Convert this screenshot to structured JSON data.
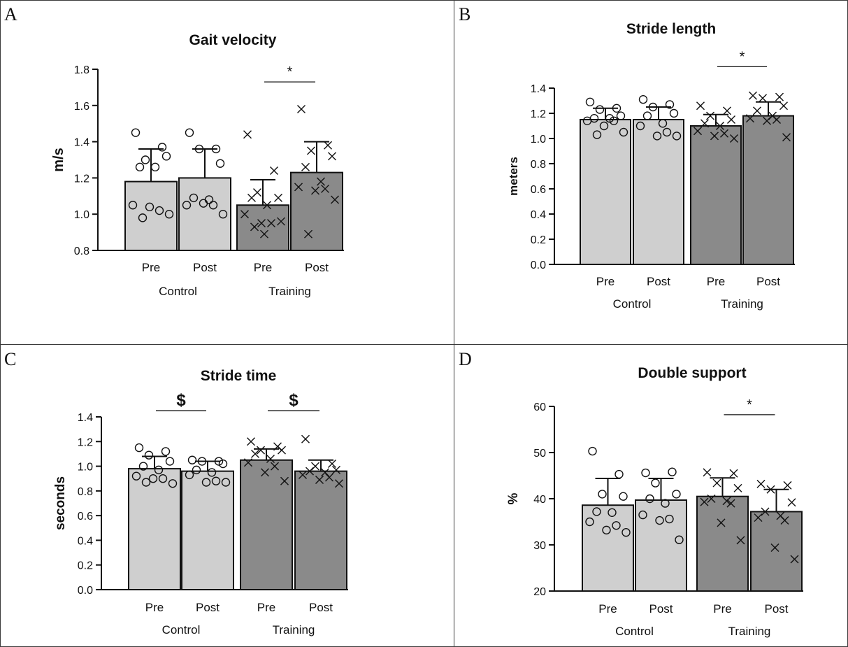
{
  "colors": {
    "control_bar": "#cfcfcf",
    "training_bar": "#8a8a8a",
    "stroke": "#111111"
  },
  "chart_data": [
    {
      "panel": "A",
      "type": "bar",
      "title": "Gait velocity",
      "ylabel": "m/s",
      "ylim": [
        0.8,
        1.8
      ],
      "yticks": [
        "0.8",
        "1.0",
        "1.2",
        "1.4",
        "1.6",
        "1.8"
      ],
      "tick_values": [
        0.8,
        1.0,
        1.2,
        1.4,
        1.6,
        1.8
      ],
      "categories": [
        "Pre",
        "Post",
        "Pre",
        "Post"
      ],
      "groups": [
        "Control",
        "Training"
      ],
      "values": [
        1.18,
        1.2,
        1.05,
        1.23
      ],
      "errors": [
        0.18,
        0.16,
        0.14,
        0.17
      ],
      "markers": [
        "circle",
        "circle",
        "cross",
        "cross"
      ],
      "points": [
        [
          1.45,
          1.37,
          1.3,
          1.32,
          1.26,
          1.26,
          1.05,
          1.02,
          1.04,
          1.0,
          0.98
        ],
        [
          1.45,
          1.36,
          1.36,
          1.28,
          1.09,
          1.08,
          1.05,
          1.05,
          1.06,
          1.0
        ],
        [
          1.44,
          1.24,
          1.12,
          1.09,
          1.09,
          1.05,
          1.0,
          0.95,
          0.95,
          0.96,
          0.93,
          0.89
        ],
        [
          1.58,
          1.38,
          1.35,
          1.32,
          1.26,
          1.18,
          1.15,
          1.14,
          1.13,
          1.08,
          0.89
        ]
      ],
      "annotations": [
        {
          "text": "*",
          "between": [
            2,
            3
          ],
          "y": 1.73
        }
      ]
    },
    {
      "panel": "B",
      "type": "bar",
      "title": "Stride length",
      "ylabel": "meters",
      "ylim": [
        0.0,
        1.5
      ],
      "yticks": [
        "0.0",
        "0.2",
        "0.4",
        "0.6",
        "0.8",
        "1.0",
        "1.2",
        "1.4"
      ],
      "tick_values": [
        0.0,
        0.2,
        0.4,
        0.6,
        0.8,
        1.0,
        1.2,
        1.4
      ],
      "categories": [
        "Pre",
        "Post",
        "Pre",
        "Post"
      ],
      "groups": [
        "Control",
        "Training"
      ],
      "values": [
        1.15,
        1.15,
        1.1,
        1.18
      ],
      "errors": [
        0.09,
        0.1,
        0.09,
        0.11
      ],
      "markers": [
        "circle",
        "circle",
        "cross",
        "cross"
      ],
      "points": [
        [
          1.29,
          1.24,
          1.23,
          1.18,
          1.16,
          1.16,
          1.14,
          1.14,
          1.1,
          1.05,
          1.03
        ],
        [
          1.31,
          1.27,
          1.25,
          1.2,
          1.18,
          1.12,
          1.1,
          1.05,
          1.02,
          1.02
        ],
        [
          1.26,
          1.22,
          1.18,
          1.15,
          1.12,
          1.1,
          1.06,
          1.04,
          1.02,
          1.0
        ],
        [
          1.34,
          1.33,
          1.32,
          1.26,
          1.22,
          1.18,
          1.16,
          1.15,
          1.14,
          1.01
        ]
      ],
      "annotations": [
        {
          "text": "*",
          "between": [
            2,
            3
          ],
          "y": 1.57
        }
      ]
    },
    {
      "panel": "C",
      "type": "bar",
      "title": "Stride time",
      "ylabel": "seconds",
      "ylim": [
        0.0,
        1.5
      ],
      "yticks": [
        "0.0",
        "0.2",
        "0.4",
        "0.6",
        "0.8",
        "1.0",
        "1.2",
        "1.4"
      ],
      "tick_values": [
        0.0,
        0.2,
        0.4,
        0.6,
        0.8,
        1.0,
        1.2,
        1.4
      ],
      "categories": [
        "Pre",
        "Post",
        "Pre",
        "Post"
      ],
      "groups": [
        "Control",
        "Training"
      ],
      "values": [
        0.98,
        0.96,
        1.05,
        0.96
      ],
      "errors": [
        0.1,
        0.08,
        0.09,
        0.09
      ],
      "markers": [
        "circle",
        "circle",
        "cross",
        "cross"
      ],
      "points": [
        [
          1.15,
          1.12,
          1.09,
          1.04,
          1.0,
          0.97,
          0.92,
          0.9,
          0.9,
          0.86,
          0.87
        ],
        [
          1.05,
          1.04,
          1.04,
          1.02,
          0.97,
          0.95,
          0.93,
          0.88,
          0.87,
          0.87
        ],
        [
          1.2,
          1.16,
          1.13,
          1.13,
          1.1,
          1.06,
          1.03,
          1.0,
          0.95,
          0.88
        ],
        [
          1.22,
          1.02,
          1.0,
          0.97,
          0.96,
          0.95,
          0.93,
          0.91,
          0.89,
          0.86
        ]
      ],
      "annotations": [
        {
          "text": "$",
          "between": [
            0,
            1
          ],
          "y": 1.45
        },
        {
          "text": "$",
          "between": [
            2,
            3
          ],
          "y": 1.45
        }
      ]
    },
    {
      "panel": "D",
      "type": "bar",
      "title": "Double support",
      "ylabel": "%",
      "ylim": [
        20,
        60
      ],
      "yticks": [
        "20",
        "30",
        "40",
        "50",
        "60"
      ],
      "tick_values": [
        20,
        30,
        40,
        50,
        60
      ],
      "categories": [
        "Pre",
        "Post",
        "Pre",
        "Post"
      ],
      "groups": [
        "Control",
        "Training"
      ],
      "values": [
        38.6,
        39.7,
        40.5,
        37.2
      ],
      "errors": [
        5.8,
        4.7,
        4.0,
        4.8
      ],
      "markers": [
        "circle",
        "circle",
        "cross",
        "cross"
      ],
      "points": [
        [
          50.3,
          45.3,
          41.0,
          40.5,
          37.2,
          37.0,
          35.0,
          34.2,
          33.2,
          32.7
        ],
        [
          45.6,
          45.8,
          43.4,
          41.0,
          40.0,
          39.0,
          36.5,
          35.6,
          35.3,
          31.1
        ],
        [
          45.7,
          45.5,
          43.4,
          42.3,
          40.0,
          39.5,
          39.3,
          39.0,
          34.8,
          31.0
        ],
        [
          43.2,
          42.9,
          42.0,
          39.2,
          37.2,
          36.3,
          35.9,
          35.3,
          29.4,
          26.9
        ]
      ],
      "annotations": [
        {
          "text": "*",
          "between": [
            2,
            3
          ],
          "y": 58.2
        }
      ]
    }
  ]
}
